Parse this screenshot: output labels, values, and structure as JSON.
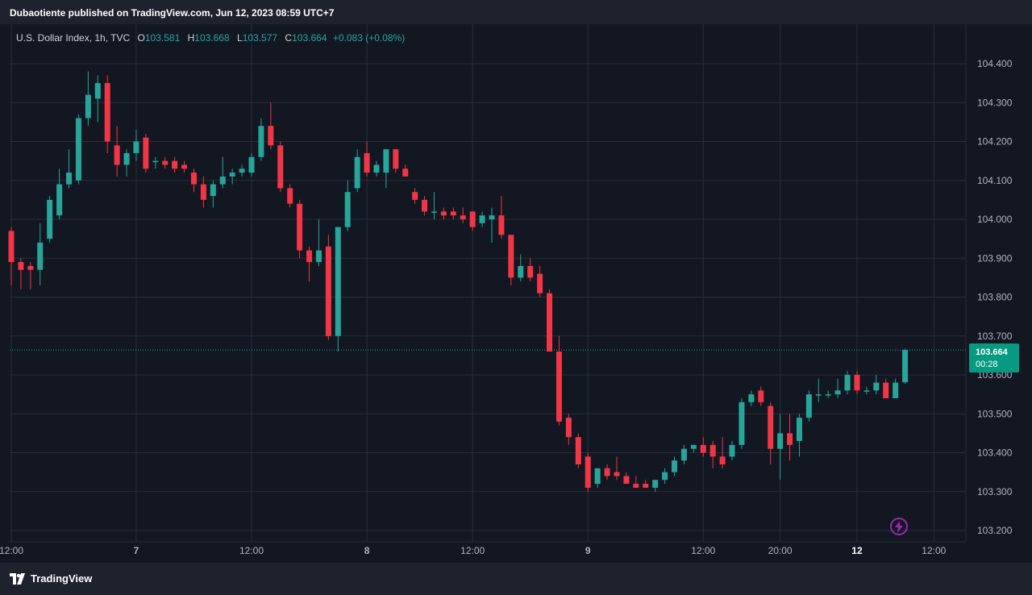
{
  "header": {
    "published_text": "Dubaotiente published on TradingView.com, Jun 12, 2023 08:59 UTC+7"
  },
  "legend": {
    "symbol": "U.S. Dollar Index, 1h, TVC",
    "open_label": "O",
    "open": "103.581",
    "high_label": "H",
    "high": "103.668",
    "low_label": "L",
    "low": "103.577",
    "close_label": "C",
    "close": "103.664",
    "change": "+0.083 (+0.08%)"
  },
  "price_tag": {
    "price": "103.664",
    "countdown": "00:28"
  },
  "footer": {
    "brand": "TradingView"
  },
  "icons": {
    "logo": "tradingview-logo-icon",
    "bolt": "lightning-bolt-icon"
  },
  "colors": {
    "background": "#131722",
    "up": "#26a69a",
    "down": "#f23645",
    "grid": "#2a2e39",
    "axis_text": "#b2b5be",
    "price_line": "#26a69a",
    "bolt": "#9c27b0"
  },
  "chart_data": {
    "type": "candlestick",
    "title": "U.S. Dollar Index, 1h, TVC",
    "ylim": [
      103.2,
      104.45
    ],
    "y_ticks": [
      "104.400",
      "104.300",
      "104.200",
      "104.100",
      "104.000",
      "103.900",
      "103.800",
      "103.700",
      "103.600",
      "103.500",
      "103.400",
      "103.300",
      "103.200"
    ],
    "x_ticks": [
      {
        "label": "12:00",
        "i": 0
      },
      {
        "label": "7",
        "i": 13
      },
      {
        "label": "12:00",
        "i": 25
      },
      {
        "label": "8",
        "i": 37
      },
      {
        "label": "12:00",
        "i": 48
      },
      {
        "label": "9",
        "i": 60
      },
      {
        "label": "12:00",
        "i": 72
      },
      {
        "label": "20:00",
        "i": 80
      },
      {
        "label": "12",
        "i": 88
      },
      {
        "label": "12:00",
        "i": 96
      }
    ],
    "last_price": 103.664,
    "grid": true,
    "candles": [
      {
        "o": 103.97,
        "h": 103.98,
        "l": 103.83,
        "c": 103.89
      },
      {
        "o": 103.89,
        "h": 103.9,
        "l": 103.82,
        "c": 103.87
      },
      {
        "o": 103.88,
        "h": 103.89,
        "l": 103.82,
        "c": 103.87
      },
      {
        "o": 103.87,
        "h": 103.99,
        "l": 103.83,
        "c": 103.94
      },
      {
        "o": 103.95,
        "h": 104.06,
        "l": 103.94,
        "c": 104.05
      },
      {
        "o": 104.01,
        "h": 104.13,
        "l": 104.0,
        "c": 104.09
      },
      {
        "o": 104.09,
        "h": 104.18,
        "l": 104.08,
        "c": 104.12
      },
      {
        "o": 104.1,
        "h": 104.27,
        "l": 104.09,
        "c": 104.26
      },
      {
        "o": 104.26,
        "h": 104.38,
        "l": 104.24,
        "c": 104.32
      },
      {
        "o": 104.31,
        "h": 104.37,
        "l": 104.25,
        "c": 104.35
      },
      {
        "o": 104.35,
        "h": 104.37,
        "l": 104.17,
        "c": 104.2
      },
      {
        "o": 104.19,
        "h": 104.24,
        "l": 104.11,
        "c": 104.14
      },
      {
        "o": 104.14,
        "h": 104.18,
        "l": 104.11,
        "c": 104.17
      },
      {
        "o": 104.17,
        "h": 104.23,
        "l": 104.15,
        "c": 104.2
      },
      {
        "o": 104.21,
        "h": 104.22,
        "l": 104.12,
        "c": 104.13
      },
      {
        "o": 104.15,
        "h": 104.16,
        "l": 104.13,
        "c": 104.15
      },
      {
        "o": 104.15,
        "h": 104.16,
        "l": 104.13,
        "c": 104.14
      },
      {
        "o": 104.15,
        "h": 104.16,
        "l": 104.12,
        "c": 104.13
      },
      {
        "o": 104.14,
        "h": 104.15,
        "l": 104.12,
        "c": 104.13
      },
      {
        "o": 104.12,
        "h": 104.13,
        "l": 104.07,
        "c": 104.09
      },
      {
        "o": 104.09,
        "h": 104.11,
        "l": 104.03,
        "c": 104.05
      },
      {
        "o": 104.06,
        "h": 104.1,
        "l": 104.03,
        "c": 104.09
      },
      {
        "o": 104.09,
        "h": 104.16,
        "l": 104.08,
        "c": 104.11
      },
      {
        "o": 104.11,
        "h": 104.13,
        "l": 104.09,
        "c": 104.12
      },
      {
        "o": 104.12,
        "h": 104.14,
        "l": 104.11,
        "c": 104.13
      },
      {
        "o": 104.12,
        "h": 104.17,
        "l": 104.11,
        "c": 104.16
      },
      {
        "o": 104.16,
        "h": 104.26,
        "l": 104.15,
        "c": 104.24
      },
      {
        "o": 104.24,
        "h": 104.3,
        "l": 104.18,
        "c": 104.19
      },
      {
        "o": 104.19,
        "h": 104.2,
        "l": 104.07,
        "c": 104.08
      },
      {
        "o": 104.08,
        "h": 104.09,
        "l": 104.03,
        "c": 104.04
      },
      {
        "o": 104.04,
        "h": 104.05,
        "l": 103.9,
        "c": 103.92
      },
      {
        "o": 103.92,
        "h": 103.93,
        "l": 103.84,
        "c": 103.89
      },
      {
        "o": 103.89,
        "h": 104.0,
        "l": 103.88,
        "c": 103.92
      },
      {
        "o": 103.93,
        "h": 103.96,
        "l": 103.69,
        "c": 103.7
      },
      {
        "o": 103.7,
        "h": 103.98,
        "l": 103.66,
        "c": 103.98
      },
      {
        "o": 103.98,
        "h": 104.1,
        "l": 103.97,
        "c": 104.07
      },
      {
        "o": 104.08,
        "h": 104.18,
        "l": 104.07,
        "c": 104.16
      },
      {
        "o": 104.17,
        "h": 104.2,
        "l": 104.11,
        "c": 104.12
      },
      {
        "o": 104.12,
        "h": 104.15,
        "l": 104.11,
        "c": 104.14
      },
      {
        "o": 104.12,
        "h": 104.18,
        "l": 104.08,
        "c": 104.18
      },
      {
        "o": 104.18,
        "h": 104.18,
        "l": 104.12,
        "c": 104.13
      },
      {
        "o": 104.13,
        "h": 104.14,
        "l": 104.11,
        "c": 104.11
      },
      {
        "o": 104.07,
        "h": 104.08,
        "l": 104.04,
        "c": 104.05
      },
      {
        "o": 104.05,
        "h": 104.06,
        "l": 104.01,
        "c": 104.02
      },
      {
        "o": 104.02,
        "h": 104.07,
        "l": 104.0,
        "c": 104.02
      },
      {
        "o": 104.02,
        "h": 104.03,
        "l": 104.0,
        "c": 104.01
      },
      {
        "o": 104.02,
        "h": 104.03,
        "l": 104.0,
        "c": 104.01
      },
      {
        "o": 104.01,
        "h": 104.03,
        "l": 103.99,
        "c": 104.0
      },
      {
        "o": 104.02,
        "h": 104.02,
        "l": 103.97,
        "c": 103.98
      },
      {
        "o": 103.99,
        "h": 104.02,
        "l": 103.98,
        "c": 104.01
      },
      {
        "o": 104.0,
        "h": 104.03,
        "l": 103.94,
        "c": 104.01
      },
      {
        "o": 104.01,
        "h": 104.06,
        "l": 103.95,
        "c": 103.96
      },
      {
        "o": 103.96,
        "h": 103.96,
        "l": 103.83,
        "c": 103.85
      },
      {
        "o": 103.85,
        "h": 103.91,
        "l": 103.84,
        "c": 103.88
      },
      {
        "o": 103.88,
        "h": 103.9,
        "l": 103.84,
        "c": 103.85
      },
      {
        "o": 103.86,
        "h": 103.88,
        "l": 103.8,
        "c": 103.81
      },
      {
        "o": 103.81,
        "h": 103.82,
        "l": 103.66,
        "c": 103.66
      },
      {
        "o": 103.66,
        "h": 103.7,
        "l": 103.47,
        "c": 103.48
      },
      {
        "o": 103.49,
        "h": 103.5,
        "l": 103.42,
        "c": 103.44
      },
      {
        "o": 103.44,
        "h": 103.45,
        "l": 103.36,
        "c": 103.37
      },
      {
        "o": 103.39,
        "h": 103.4,
        "l": 103.3,
        "c": 103.31
      },
      {
        "o": 103.32,
        "h": 103.36,
        "l": 103.31,
        "c": 103.36
      },
      {
        "o": 103.36,
        "h": 103.37,
        "l": 103.33,
        "c": 103.34
      },
      {
        "o": 103.35,
        "h": 103.39,
        "l": 103.33,
        "c": 103.34
      },
      {
        "o": 103.34,
        "h": 103.35,
        "l": 103.32,
        "c": 103.32
      },
      {
        "o": 103.32,
        "h": 103.34,
        "l": 103.31,
        "c": 103.31
      },
      {
        "o": 103.32,
        "h": 103.33,
        "l": 103.31,
        "c": 103.31
      },
      {
        "o": 103.31,
        "h": 103.33,
        "l": 103.3,
        "c": 103.33
      },
      {
        "o": 103.33,
        "h": 103.36,
        "l": 103.32,
        "c": 103.35
      },
      {
        "o": 103.35,
        "h": 103.39,
        "l": 103.34,
        "c": 103.38
      },
      {
        "o": 103.38,
        "h": 103.42,
        "l": 103.37,
        "c": 103.41
      },
      {
        "o": 103.41,
        "h": 103.42,
        "l": 103.4,
        "c": 103.42
      },
      {
        "o": 103.42,
        "h": 103.44,
        "l": 103.39,
        "c": 103.4
      },
      {
        "o": 103.42,
        "h": 103.43,
        "l": 103.36,
        "c": 103.39
      },
      {
        "o": 103.39,
        "h": 103.44,
        "l": 103.36,
        "c": 103.37
      },
      {
        "o": 103.39,
        "h": 103.43,
        "l": 103.38,
        "c": 103.42
      },
      {
        "o": 103.42,
        "h": 103.54,
        "l": 103.41,
        "c": 103.53
      },
      {
        "o": 103.53,
        "h": 103.56,
        "l": 103.52,
        "c": 103.55
      },
      {
        "o": 103.56,
        "h": 103.57,
        "l": 103.52,
        "c": 103.53
      },
      {
        "o": 103.52,
        "h": 103.53,
        "l": 103.37,
        "c": 103.41
      },
      {
        "o": 103.41,
        "h": 103.5,
        "l": 103.33,
        "c": 103.45
      },
      {
        "o": 103.45,
        "h": 103.5,
        "l": 103.38,
        "c": 103.42
      },
      {
        "o": 103.43,
        "h": 103.5,
        "l": 103.39,
        "c": 103.49
      },
      {
        "o": 103.49,
        "h": 103.56,
        "l": 103.48,
        "c": 103.55
      },
      {
        "o": 103.55,
        "h": 103.59,
        "l": 103.53,
        "c": 103.55
      },
      {
        "o": 103.55,
        "h": 103.56,
        "l": 103.54,
        "c": 103.55
      },
      {
        "o": 103.55,
        "h": 103.59,
        "l": 103.54,
        "c": 103.56
      },
      {
        "o": 103.56,
        "h": 103.61,
        "l": 103.55,
        "c": 103.6
      },
      {
        "o": 103.6,
        "h": 103.61,
        "l": 103.55,
        "c": 103.56
      },
      {
        "o": 103.56,
        "h": 103.57,
        "l": 103.55,
        "c": 103.56
      },
      {
        "o": 103.56,
        "h": 103.6,
        "l": 103.55,
        "c": 103.58
      },
      {
        "o": 103.58,
        "h": 103.59,
        "l": 103.54,
        "c": 103.54
      },
      {
        "o": 103.54,
        "h": 103.59,
        "l": 103.54,
        "c": 103.58
      },
      {
        "o": 103.581,
        "h": 103.668,
        "l": 103.577,
        "c": 103.664
      }
    ]
  }
}
